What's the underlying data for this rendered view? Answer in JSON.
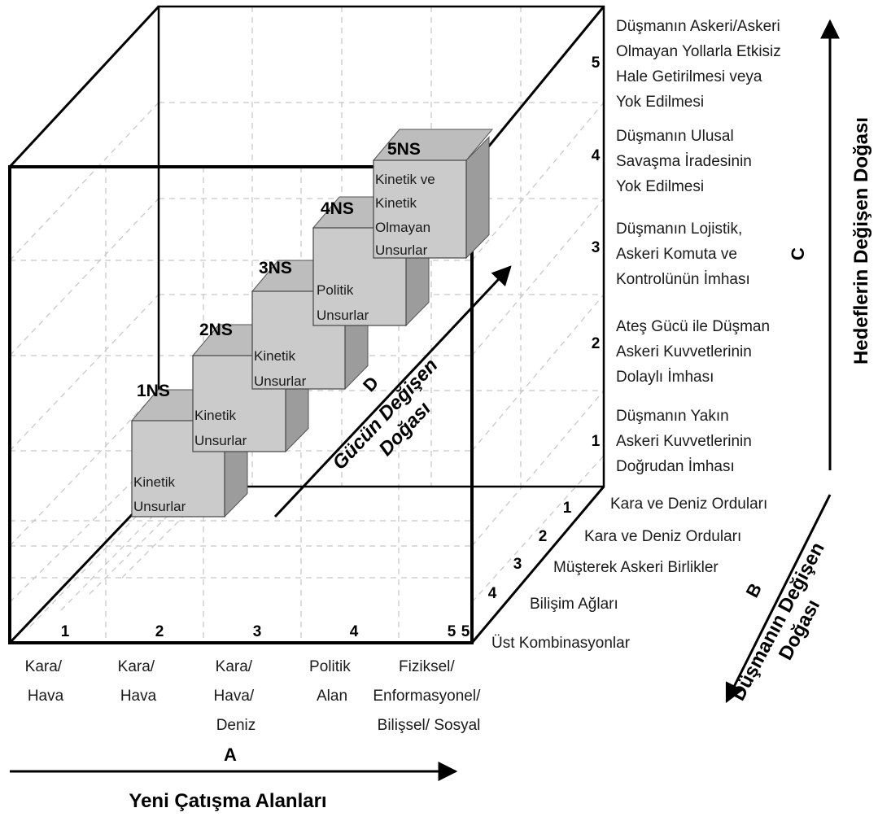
{
  "axis_a": {
    "letter": "A",
    "title": "Yeni Çatışma Alanları",
    "ticks": [
      {
        "num": "1",
        "label": [
          "Kara/",
          "Hava"
        ]
      },
      {
        "num": "2",
        "label": [
          "Kara/",
          "Hava"
        ]
      },
      {
        "num": "3",
        "label": [
          "Kara/",
          "Hava/",
          "Deniz"
        ]
      },
      {
        "num": "4",
        "label": [
          "Politik",
          "Alan"
        ]
      },
      {
        "num": "5",
        "label": [
          "Fiziksel/",
          "Enformasyonel/",
          "Bilişsel/ Sosyal"
        ]
      }
    ]
  },
  "axis_b": {
    "letter": "B",
    "title": [
      "Düşmanın Değişen",
      "Doğası"
    ],
    "ticks": [
      {
        "num": "1",
        "label": "Kara ve Deniz Orduları"
      },
      {
        "num": "2",
        "label": "Kara ve Deniz Orduları"
      },
      {
        "num": "3",
        "label": "Müşterek Askeri Birlikler"
      },
      {
        "num": "4",
        "label": "Bilişim Ağları"
      },
      {
        "num": "5",
        "label": "Üst Kombinasyonlar"
      }
    ]
  },
  "axis_c": {
    "letter": "C",
    "title": "Hedeflerin Değişen Doğası",
    "ticks": [
      {
        "num": "1",
        "label": [
          "Düşmanın Yakın",
          "Askeri Kuvvetlerinin",
          "Doğrudan İmhası"
        ]
      },
      {
        "num": "2",
        "label": [
          "Ateş Gücü ile Düşman",
          "Askeri Kuvvetlerinin",
          "Dolaylı İmhası"
        ]
      },
      {
        "num": "3",
        "label": [
          "Düşmanın Lojistik,",
          "Askeri Komuta ve",
          "Kontrolünün İmhası"
        ]
      },
      {
        "num": "4",
        "label": [
          "Düşmanın Ulusal",
          "Savaşma İradesinin",
          "Yok Edilmesi"
        ]
      },
      {
        "num": "5",
        "label": [
          "Düşmanın Askeri/Askeri",
          "Olmayan Yollarla Etkisiz",
          "Hale Getirilmesi veya",
          "Yok Edilmesi"
        ]
      }
    ]
  },
  "axis_d": {
    "letter": "D",
    "title": [
      "Gücün Değişen",
      "Doğası"
    ]
  },
  "blocks": [
    {
      "tag": "1NS",
      "text": [
        "Kinetik",
        "Unsurlar"
      ]
    },
    {
      "tag": "2NS",
      "text": [
        "Kinetik",
        "Unsurlar"
      ]
    },
    {
      "tag": "3NS",
      "text": [
        "Kinetik",
        "Unsurlar"
      ]
    },
    {
      "tag": "4NS",
      "text": [
        "Politik",
        "Unsurlar"
      ]
    },
    {
      "tag": "5NS",
      "text": [
        "Kinetik ve",
        "Kinetik",
        "Olmayan",
        "Unsurlar"
      ]
    }
  ],
  "colors": {
    "block_front": "#cbcbcb",
    "block_top": "#bdbdbd",
    "block_side": "#9c9c9c",
    "frame": "#000000",
    "grid": "#c8c8c8"
  }
}
